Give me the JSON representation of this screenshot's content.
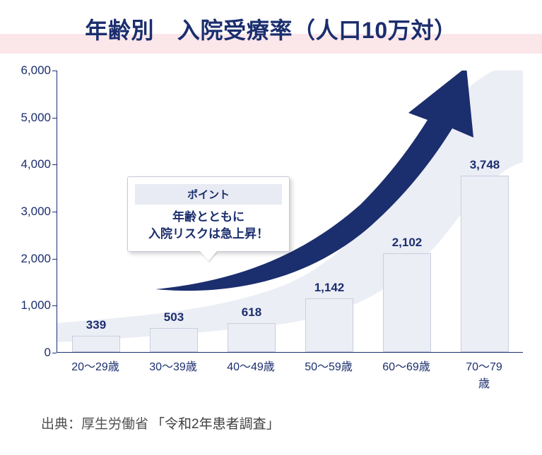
{
  "title": "年齢別　入院受療率（人口10万対）",
  "chart": {
    "type": "bar",
    "ylim": [
      0,
      6000
    ],
    "ytick_step": 1000,
    "ytick_labels": [
      "0",
      "1,000",
      "2,000",
      "3,000",
      "4,000",
      "5,000",
      "6,000"
    ],
    "categories": [
      "20～29歳",
      "30～39歳",
      "40～49歳",
      "50～59歳",
      "60～69歳",
      "70～79歳"
    ],
    "values": [
      339,
      503,
      618,
      1142,
      2102,
      3748
    ],
    "value_labels": [
      "339",
      "503",
      "618",
      "1,142",
      "2,102",
      "3,748"
    ],
    "bar_color": "#eceef5",
    "bar_border": "#c9cde0",
    "axis_color": "#1b2e6e",
    "background_shape_color": "#eceef5",
    "arrow_color": "#1b2e6e",
    "bar_width_ratio": 0.62
  },
  "callout": {
    "header": "ポイント",
    "body_line1": "年齢とともに",
    "body_line2": "入院リスクは急上昇！"
  },
  "source": {
    "prefix": "出典：厚生労働省",
    "quote": "「令和2年患者調査」"
  },
  "accent_band_color": "#fbe6ea",
  "title_color": "#1b2e6e"
}
